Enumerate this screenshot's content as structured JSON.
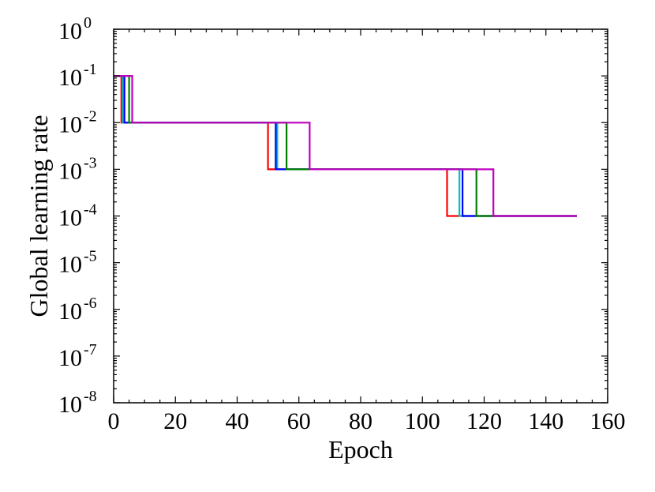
{
  "chart_data": {
    "type": "line",
    "title": "",
    "xlabel": "Epoch",
    "ylabel": "Global learning rate",
    "xlim": [
      0,
      160
    ],
    "ylim": [
      1e-08,
      1
    ],
    "yscale": "log",
    "x_ticks": [
      "0",
      "20",
      "40",
      "60",
      "80",
      "100",
      "120",
      "140",
      "160"
    ],
    "y_ticks": [
      {
        "base": "10",
        "exp": "-8"
      },
      {
        "base": "10",
        "exp": "-7"
      },
      {
        "base": "10",
        "exp": "-6"
      },
      {
        "base": "10",
        "exp": "-5"
      },
      {
        "base": "10",
        "exp": "-4"
      },
      {
        "base": "10",
        "exp": "-3"
      },
      {
        "base": "10",
        "exp": "-2"
      },
      {
        "base": "10",
        "exp": "-1"
      },
      {
        "base": "10",
        "exp": "0"
      }
    ],
    "grid": false,
    "legend": "none",
    "series": [
      {
        "color": "#ff0000",
        "x": [
          0,
          2.5,
          2.5,
          50,
          50,
          108,
          108,
          150
        ],
        "y": [
          0.1,
          0.1,
          0.01,
          0.01,
          0.001,
          0.001,
          0.0001,
          0.0001
        ]
      },
      {
        "color": "#00bfbf",
        "x": [
          0,
          3,
          3,
          53,
          53,
          112,
          112,
          150
        ],
        "y": [
          0.1,
          0.1,
          0.01,
          0.01,
          0.001,
          0.001,
          0.0001,
          0.0001
        ]
      },
      {
        "color": "#0000ff",
        "x": [
          0,
          3.5,
          3.5,
          52.5,
          52.5,
          113,
          113,
          150
        ],
        "y": [
          0.1,
          0.1,
          0.01,
          0.01,
          0.001,
          0.001,
          0.0001,
          0.0001
        ]
      },
      {
        "color": "#008000",
        "x": [
          0,
          5,
          5,
          56,
          56,
          117.5,
          117.5,
          150
        ],
        "y": [
          0.1,
          0.1,
          0.01,
          0.01,
          0.001,
          0.001,
          0.0001,
          0.0001
        ]
      },
      {
        "color": "#bf00bf",
        "x": [
          0,
          6,
          6,
          63.5,
          63.5,
          123,
          123,
          150
        ],
        "y": [
          0.1,
          0.1,
          0.01,
          0.01,
          0.001,
          0.001,
          0.0001,
          0.0001
        ]
      }
    ]
  }
}
